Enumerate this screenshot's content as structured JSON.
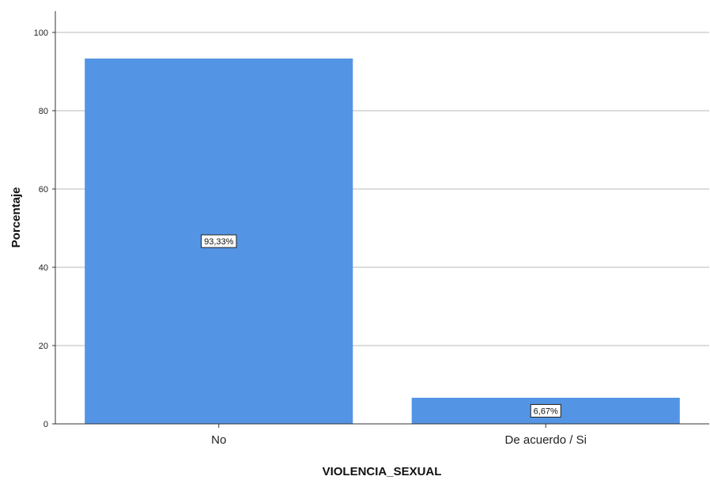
{
  "chart_data": {
    "type": "bar",
    "categories": [
      "No",
      "De acuerdo / Si"
    ],
    "values": [
      93.33,
      6.67
    ],
    "data_labels": [
      "93,33%",
      "6,67%"
    ],
    "xlabel": "VIOLENCIA_SEXUAL",
    "ylabel": "Porcentaje",
    "ylim": [
      0,
      100
    ],
    "yticks": [
      0,
      20,
      40,
      60,
      80,
      100
    ],
    "grid": true,
    "bar_color": "#5494e4",
    "grid_color": "#c8c8c8"
  }
}
